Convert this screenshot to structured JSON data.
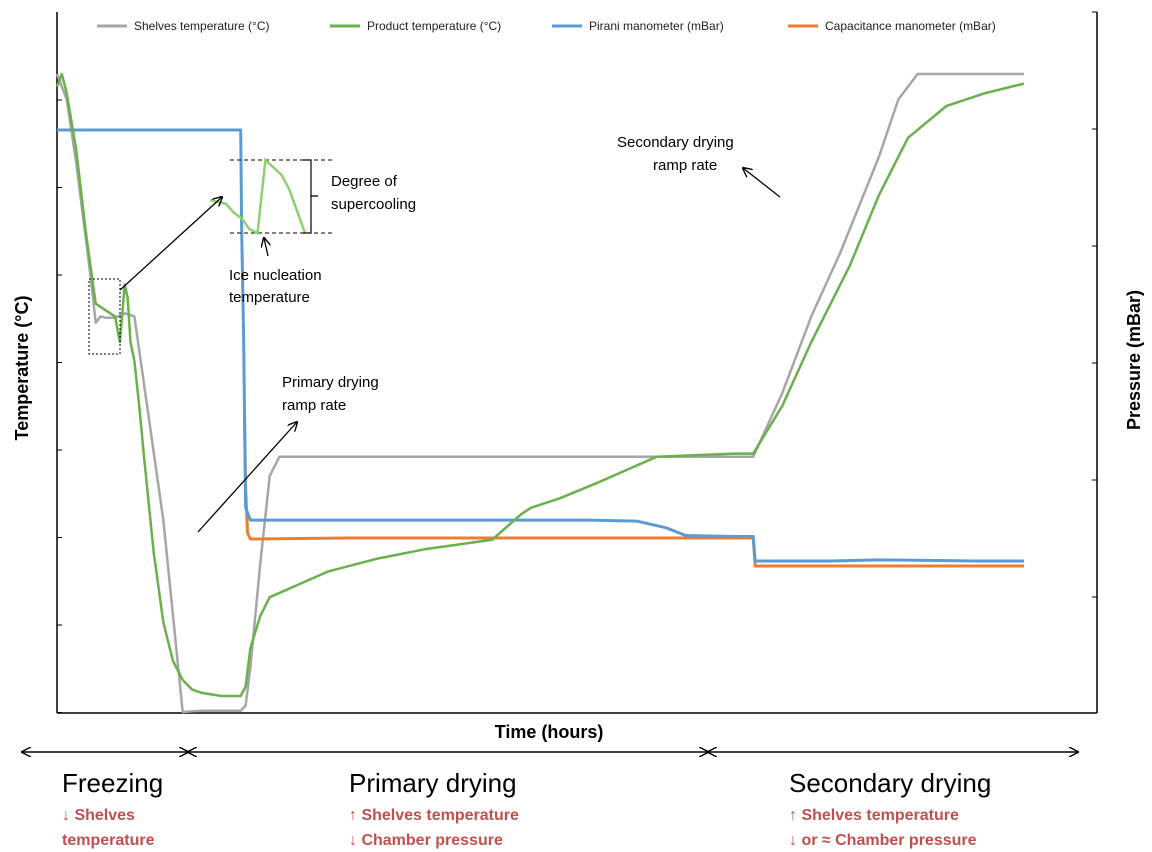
{
  "chart_data": {
    "type": "line",
    "xlabel": "Time (hours)",
    "ylabel_left": "Temperature (°C)",
    "ylabel_right": "Pressure (mBar)",
    "grid": false,
    "legend_position": "top",
    "y_tick_labels_shown": false,
    "x_tick_labels_shown": false,
    "x_unit": "relative time (0–100)",
    "series": [
      {
        "name": "Shelves temperature (°C)",
        "axis": "left",
        "color": "#a6a6a6",
        "x": [
          0,
          1,
          2,
          3.5,
          4,
          4.5,
          5,
          6,
          7,
          8,
          11,
          13,
          15,
          19,
          19.5,
          20,
          21,
          22,
          23,
          26,
          40,
          50,
          60,
          70,
          72,
          75,
          78,
          81,
          85,
          87,
          89,
          95,
          100
        ],
        "y": [
          100,
          96,
          86,
          68,
          61,
          62,
          61.8,
          61.8,
          62.5,
          62,
          30,
          0,
          0.2,
          0.2,
          1,
          7,
          23,
          37,
          40,
          40,
          40,
          40,
          40,
          40,
          40,
          50,
          62,
          72,
          87,
          96,
          100,
          100,
          100
        ]
      },
      {
        "name": "Product temperature (°C)",
        "axis": "left",
        "color": "#6ab04c",
        "x": [
          0,
          0.5,
          1,
          2,
          3,
          4,
          5,
          6,
          6.5,
          7,
          7.3,
          7.6,
          8,
          8.5,
          9,
          10,
          11,
          12,
          13,
          14,
          15,
          17,
          19,
          19.5,
          20,
          21,
          22,
          25,
          28,
          33,
          38,
          45,
          48,
          49,
          52,
          56,
          62,
          70,
          72,
          75,
          78,
          82,
          85,
          88,
          92,
          96,
          100
        ],
        "y": [
          98,
          100,
          97,
          88,
          75,
          64,
          63,
          62,
          58,
          67,
          65,
          58,
          55,
          48,
          40,
          25,
          14,
          8,
          5,
          3.5,
          3,
          2.5,
          2.5,
          4,
          10,
          15,
          18,
          20,
          22,
          24,
          25.5,
          27,
          31,
          32,
          33.5,
          36,
          40,
          40.5,
          40.5,
          48,
          58,
          70,
          81,
          90,
          95,
          97,
          98.5
        ]
      },
      {
        "name": "Pirani manometer (mBar)",
        "axis": "right",
        "color": "#5b9bd5",
        "x": [
          0,
          19,
          19.1,
          19.3,
          19.5,
          20,
          30,
          40,
          45,
          50,
          55,
          60,
          63,
          65,
          70,
          72,
          72.2,
          75,
          80,
          85,
          90,
          95,
          100
        ],
        "y": [
          100,
          100,
          80,
          60,
          26,
          23.5,
          23.5,
          23.5,
          23.5,
          23.5,
          23.5,
          23.3,
          22,
          20.5,
          20.3,
          20.3,
          15.5,
          15.5,
          15.5,
          15.7,
          15.6,
          15.5,
          15.5
        ]
      },
      {
        "name": "Capacitance manometer (mBar)",
        "axis": "right",
        "color": "#ed7d31",
        "x": [
          19.4,
          19.5,
          19.7,
          20,
          30,
          40,
          50,
          60,
          70,
          72,
          72.2,
          80,
          90,
          100
        ],
        "y": [
          43,
          30,
          21,
          19.8,
          20,
          20,
          20,
          20,
          20,
          20,
          14.5,
          14.5,
          14.5,
          14.5
        ]
      }
    ],
    "inset": {
      "series": "Product temperature (°C)",
      "x": [
        0,
        2,
        3,
        4,
        5,
        6,
        7,
        8,
        9,
        10,
        11,
        12
      ],
      "y": [
        45,
        40,
        28,
        20,
        5,
        0,
        100,
        90,
        80,
        60,
        30,
        0
      ]
    },
    "annotations": {
      "supercooling": [
        "Degree of",
        "supercooling"
      ],
      "nucleation": [
        "Ice nucleation",
        "temperature"
      ],
      "primary_ramp": [
        "Primary drying",
        "ramp rate"
      ],
      "secondary_ramp": [
        "Secondary drying",
        "ramp rate"
      ]
    },
    "phases": [
      {
        "name": "Freezing",
        "lines": [
          "↓ Shelves",
          "temperature"
        ]
      },
      {
        "name": "Primary drying",
        "lines": [
          "↑ Shelves temperature",
          "↓ Chamber pressure"
        ]
      },
      {
        "name": "Secondary drying",
        "lines": [
          "↑ Shelves temperature",
          "↓ or ≈ Chamber pressure"
        ]
      }
    ]
  }
}
